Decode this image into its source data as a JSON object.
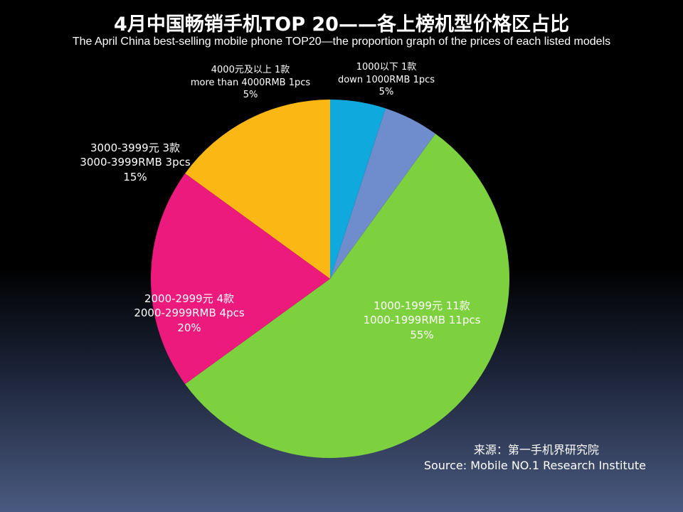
{
  "title": "4月中国畅销手机TOP 20——各上榜机型价格区占比",
  "subtitle": "The  April China best-selling mobile phone TOP20—the proportion graph of the prices of each listed models",
  "source": {
    "cn": "来源：第一手机界研究院",
    "en": "Source: Mobile NO.1 Research Institute"
  },
  "chart_data": {
    "type": "pie",
    "title": "4月中国畅销手机TOP 20——各上榜机型价格区占比",
    "slices": [
      {
        "label_cn": "1000以下 1款",
        "label_en": "down 1000RMB 1pcs",
        "percent": "5%",
        "value": 5,
        "color": "#6f8ccc"
      },
      {
        "label_cn": "1000-1999元 11款",
        "label_en": "1000-1999RMB 11pcs",
        "percent": "55%",
        "value": 55,
        "color": "#7dd13f"
      },
      {
        "label_cn": "2000-2999元 4款",
        "label_en": "2000-2999RMB 4pcs",
        "percent": "20%",
        "value": 20,
        "color": "#ec1a7c"
      },
      {
        "label_cn": "3000-3999元 3款",
        "label_en": "3000-3999RMB 3pcs",
        "percent": "15%",
        "value": 15,
        "color": "#fbb714"
      },
      {
        "label_cn": "4000元及以上 1款",
        "label_en": "more than 4000RMB 1pcs",
        "percent": "5%",
        "value": 5,
        "color": "#10a9de"
      }
    ]
  }
}
